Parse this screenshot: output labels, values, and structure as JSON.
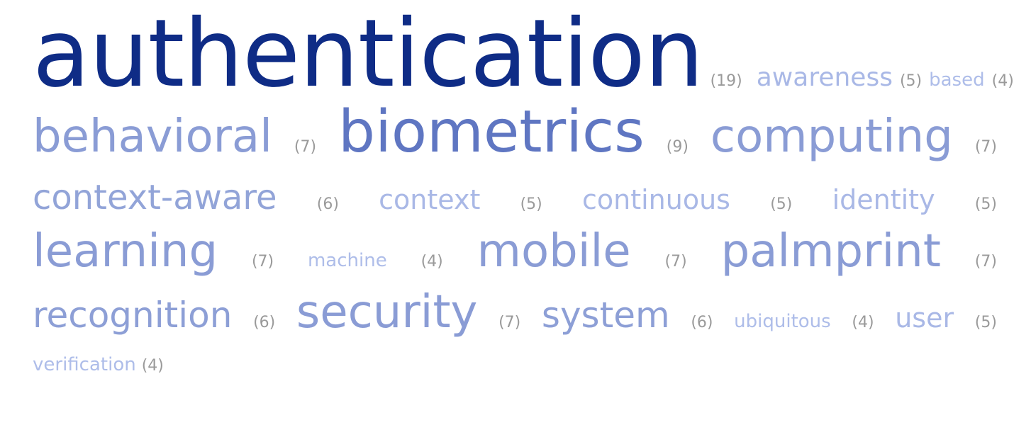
{
  "tags": {
    "authentication": {
      "word": "authentication",
      "count": "(19)"
    },
    "awareness": {
      "word": "awareness",
      "count": "(5)"
    },
    "based": {
      "word": "based",
      "count": "(4)"
    },
    "behavioral": {
      "word": "behavioral",
      "count": "(7)"
    },
    "biometrics": {
      "word": "biometrics",
      "count": "(9)"
    },
    "computing": {
      "word": "computing",
      "count": "(7)"
    },
    "context_aware": {
      "word": "context-aware",
      "count": "(6)"
    },
    "context": {
      "word": "context",
      "count": "(5)"
    },
    "continuous": {
      "word": "continuous",
      "count": "(5)"
    },
    "identity": {
      "word": "identity",
      "count": "(5)"
    },
    "learning": {
      "word": "learning",
      "count": "(7)"
    },
    "machine": {
      "word": "machine",
      "count": "(4)"
    },
    "mobile": {
      "word": "mobile",
      "count": "(7)"
    },
    "palmprint": {
      "word": "palmprint",
      "count": "(7)"
    },
    "recognition": {
      "word": "recognition",
      "count": "(6)"
    },
    "security": {
      "word": "security",
      "count": "(7)"
    },
    "system": {
      "word": "system",
      "count": "(6)"
    },
    "ubiquitous": {
      "word": "ubiquitous",
      "count": "(4)"
    },
    "user": {
      "word": "user",
      "count": "(5)"
    },
    "verification": {
      "word": "verification",
      "count": "(4)"
    }
  },
  "colors": {
    "dominant": "#0f2c86",
    "strong": "#5f76c2",
    "medium": "#8a9cd5",
    "light": "#a9b8e6",
    "count_gray": "#9a9a9a"
  }
}
